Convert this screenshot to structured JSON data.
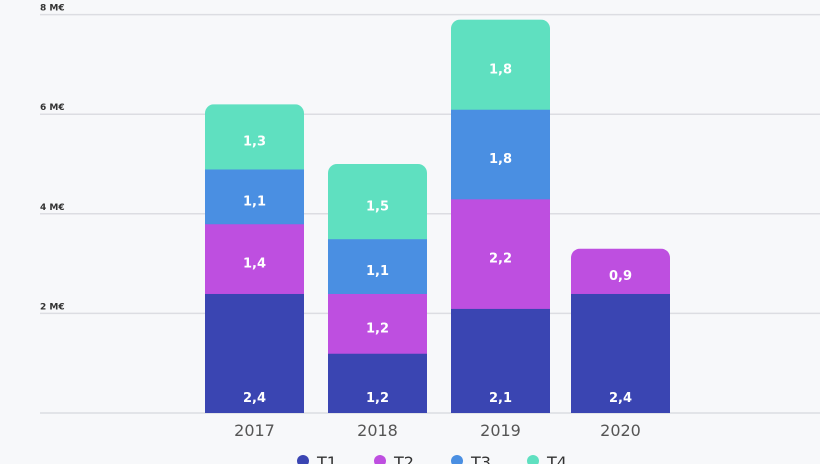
{
  "chart_data": {
    "type": "bar",
    "stacked": true,
    "categories": [
      "2017",
      "2018",
      "2019",
      "2020"
    ],
    "series": [
      {
        "name": "T1",
        "values": [
          2.4,
          1.2,
          2.1,
          2.4
        ],
        "labels": [
          "2,4",
          "1,2",
          "2,1",
          "2,4"
        ],
        "color": "#3a45b2"
      },
      {
        "name": "T2",
        "values": [
          1.4,
          1.2,
          2.2,
          0.9
        ],
        "labels": [
          "1,4",
          "1,2",
          "2,2",
          "0,9"
        ],
        "color": "#be4fe0"
      },
      {
        "name": "T3",
        "values": [
          1.1,
          1.1,
          1.8,
          null
        ],
        "labels": [
          "1,1",
          "1,1",
          "1,8",
          null
        ],
        "color": "#4a8fe2"
      },
      {
        "name": "T4",
        "values": [
          1.3,
          1.5,
          1.8,
          null
        ],
        "labels": [
          "1,3",
          "1,5",
          "1,8",
          null
        ],
        "color": "#5fe0c0"
      }
    ],
    "yticks": [
      {
        "value": 2,
        "label": "2 M€"
      },
      {
        "value": 4,
        "label": "4 M€"
      },
      {
        "value": 6,
        "label": "6 M€"
      },
      {
        "value": 8,
        "label": "8 M€"
      }
    ],
    "ylim": [
      0,
      8
    ],
    "grid": true,
    "legend": "bottom",
    "title": "",
    "xlabel": "",
    "ylabel": ""
  }
}
